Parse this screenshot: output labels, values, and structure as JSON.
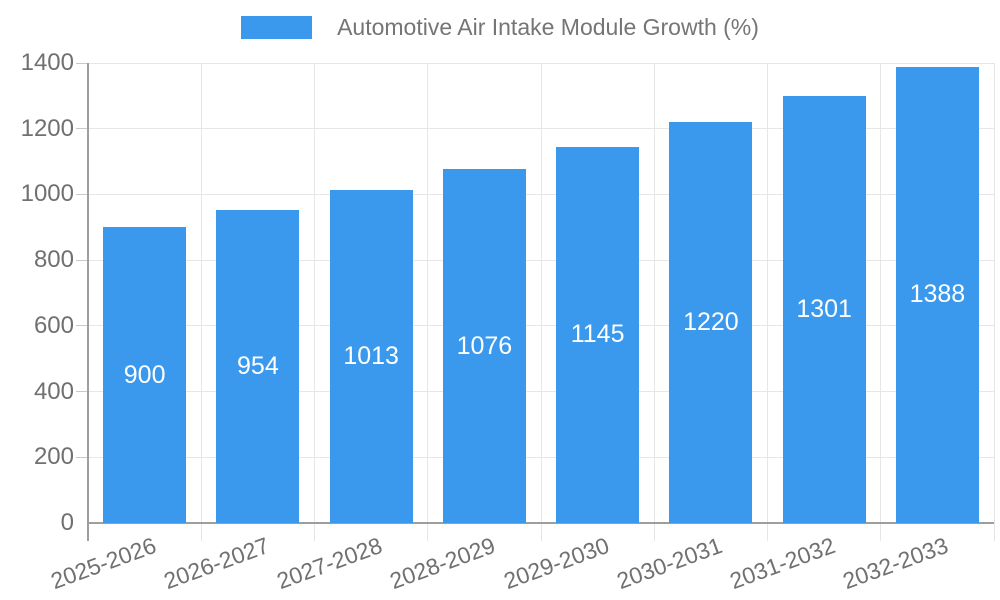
{
  "chart_data": {
    "type": "bar",
    "title": "Automotive Air Intake Module Growth (%)",
    "legend": {
      "position": "top",
      "label": "Automotive Air Intake Module Growth (%)"
    },
    "categories": [
      "2025-2026",
      "2026-2027",
      "2027-2028",
      "2028-2029",
      "2029-2030",
      "2030-2031",
      "2031-2032",
      "2032-2033"
    ],
    "series": [
      {
        "name": "Automotive Air Intake Module Growth (%)",
        "values": [
          900,
          954,
          1013,
          1076,
          1145,
          1220,
          1301,
          1388
        ]
      }
    ],
    "value_labels_shown": true,
    "xlabel": "",
    "ylabel": "",
    "ylim": [
      0,
      1400
    ],
    "yticks": [
      0,
      200,
      400,
      600,
      800,
      1000,
      1200,
      1400
    ],
    "grid": true,
    "x_label_rotation_deg": -20,
    "colors": {
      "bar": "#3A99EC",
      "bar_value_text": "#FFFFFF",
      "legend_text": "#757575",
      "tick_text": "#707070",
      "gridline": "#E6E6E6",
      "tick_mark": "#C9C9C9",
      "axis_line": "#9E9E9E",
      "background": "#FFFFFF"
    }
  }
}
